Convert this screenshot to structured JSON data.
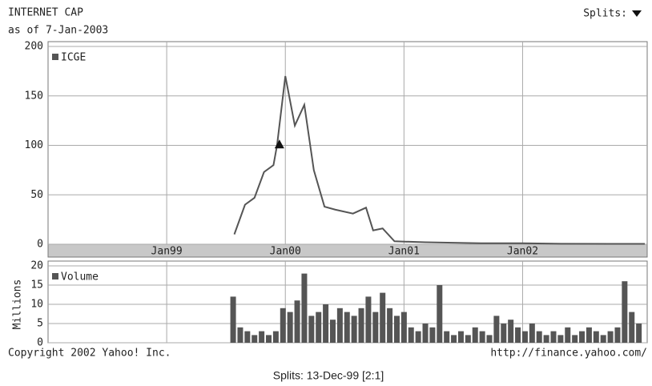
{
  "chart_data": [
    {
      "type": "line",
      "title": "INTERNET CAP",
      "subtitle": "as of  7-Jan-2003",
      "xlim": [
        1998.0,
        2003.05
      ],
      "xticks": [
        {
          "value": 1999,
          "label": "Jan99"
        },
        {
          "value": 2000,
          "label": "Jan00"
        },
        {
          "value": 2001,
          "label": "Jan01"
        },
        {
          "value": 2002,
          "label": "Jan02"
        }
      ],
      "ylim": [
        0,
        200
      ],
      "yticks": [
        0,
        50,
        100,
        150,
        200
      ],
      "grid": true,
      "series": [
        {
          "name": "ICGE",
          "color": "#555555",
          "x": [
            1999.57,
            1999.66,
            1999.74,
            1999.82,
            1999.9,
            1999.93,
            2000.0,
            2000.08,
            2000.16,
            2000.24,
            2000.33,
            2000.42,
            2000.57,
            2000.68,
            2000.74,
            2000.82,
            2000.92,
            2001.18,
            2001.65,
            2002.0,
            2002.32,
            2003.03
          ],
          "values": [
            10,
            40,
            47,
            73,
            80,
            100,
            170,
            120,
            141,
            75,
            38,
            35,
            31,
            37,
            14,
            16,
            3,
            2,
            1,
            1,
            0.5,
            0.4
          ]
        }
      ],
      "split_marker": {
        "x": 1999.95,
        "y": 101
      }
    },
    {
      "type": "bar",
      "ylabel": "Millions",
      "xlim": [
        1998.0,
        2003.05
      ],
      "xticks": [
        1999,
        2000,
        2001,
        2002
      ],
      "ylim": [
        0,
        20
      ],
      "yticks": [
        0,
        5,
        10,
        15,
        20
      ],
      "grid": true,
      "series": [
        {
          "name": "Volume",
          "color": "#555555",
          "x": [
            1999.56,
            1999.62,
            1999.68,
            1999.74,
            1999.8,
            1999.86,
            1999.92,
            1999.98,
            2000.04,
            2000.1,
            2000.16,
            2000.22,
            2000.28,
            2000.34,
            2000.4,
            2000.46,
            2000.52,
            2000.58,
            2000.64,
            2000.7,
            2000.76,
            2000.82,
            2000.88,
            2000.94,
            2001.0,
            2001.06,
            2001.12,
            2001.18,
            2001.24,
            2001.3,
            2001.36,
            2001.42,
            2001.48,
            2001.54,
            2001.6,
            2001.66,
            2001.72,
            2001.78,
            2001.84,
            2001.9,
            2001.96,
            2002.02,
            2002.08,
            2002.14,
            2002.2,
            2002.26,
            2002.32,
            2002.38,
            2002.44,
            2002.5,
            2002.56,
            2002.62,
            2002.68,
            2002.74,
            2002.8,
            2002.86,
            2002.92,
            2002.98
          ],
          "values": [
            12,
            4,
            3,
            2,
            3,
            2,
            3,
            9,
            8,
            11,
            18,
            7,
            8,
            10,
            6,
            9,
            8,
            7,
            9,
            12,
            8,
            13,
            9,
            7,
            8,
            4,
            3,
            5,
            4,
            15,
            3,
            2,
            3,
            2,
            4,
            3,
            2,
            7,
            5,
            6,
            4,
            3,
            5,
            3,
            2,
            3,
            2,
            4,
            2,
            3,
            4,
            3,
            2,
            3,
            4,
            16,
            8,
            5
          ]
        }
      ]
    }
  ],
  "splits_label": "Splits:",
  "copyright": "Copyright 2002 Yahoo! Inc.",
  "source_url": "http://finance.yahoo.com/",
  "splits_note": "Splits: 13-Dec-99 [2:1]"
}
